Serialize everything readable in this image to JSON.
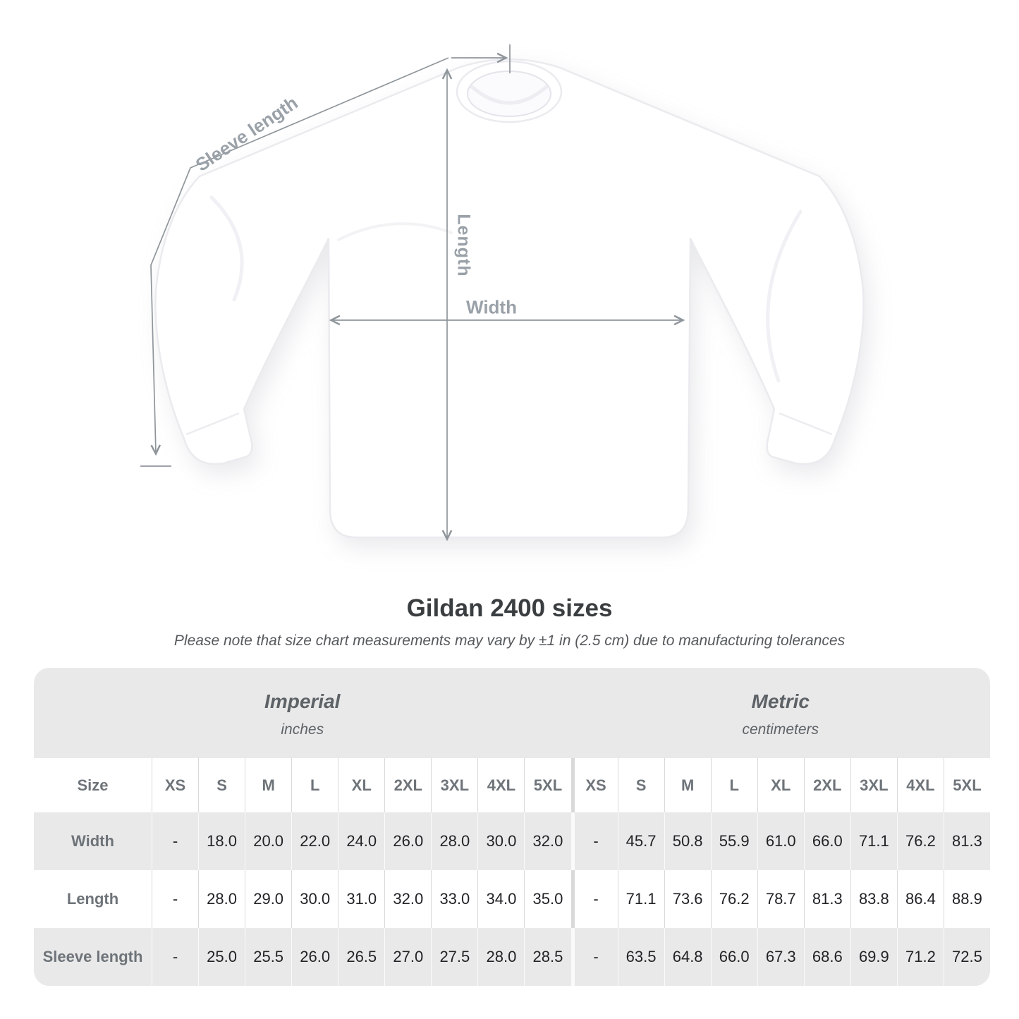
{
  "diagram": {
    "labels": {
      "sleeve_length": "Sleeve length",
      "length": "Length",
      "width": "Width"
    }
  },
  "title": "Gildan 2400 sizes",
  "subtitle": "Please note that size chart measurements may vary by ±1 in (2.5 cm) due to manufacturing tolerances",
  "table": {
    "groups": [
      {
        "name": "Imperial",
        "unit": "inches"
      },
      {
        "name": "Metric",
        "unit": "centimeters"
      }
    ],
    "size_label": "Size",
    "sizes": [
      "XS",
      "S",
      "M",
      "L",
      "XL",
      "2XL",
      "3XL",
      "4XL",
      "5XL"
    ],
    "rows": [
      {
        "label": "Width",
        "imperial": [
          "-",
          "18.0",
          "20.0",
          "22.0",
          "24.0",
          "26.0",
          "28.0",
          "30.0",
          "32.0"
        ],
        "metric": [
          "-",
          "45.7",
          "50.8",
          "55.9",
          "61.0",
          "66.0",
          "71.1",
          "76.2",
          "81.3"
        ]
      },
      {
        "label": "Length",
        "imperial": [
          "-",
          "28.0",
          "29.0",
          "30.0",
          "31.0",
          "32.0",
          "33.0",
          "34.0",
          "35.0"
        ],
        "metric": [
          "-",
          "71.1",
          "73.6",
          "76.2",
          "78.7",
          "81.3",
          "83.8",
          "86.4",
          "88.9"
        ]
      },
      {
        "label": "Sleeve length",
        "imperial": [
          "-",
          "25.0",
          "25.5",
          "26.0",
          "26.5",
          "27.0",
          "27.5",
          "28.0",
          "28.5"
        ],
        "metric": [
          "-",
          "63.5",
          "64.8",
          "66.0",
          "67.3",
          "68.6",
          "69.9",
          "71.2",
          "72.5"
        ]
      }
    ]
  },
  "colors": {
    "page_bg": "#ffffff",
    "measure_line": "#8f969b",
    "measure_label": "#9aa1a8",
    "title_text": "#3b3e40",
    "subtitle_text": "#55595c",
    "table_bg": "#e9e9e9",
    "table_stripe": "#ffffff",
    "group_text": "#5d6267",
    "header_text": "#6e7479",
    "value_text": "#212326",
    "divider_on_white": "#d9d9d9",
    "divider_on_gray": "#fafafa",
    "shirt_fill": "#ffffff",
    "shirt_outline": "#ebebef"
  }
}
